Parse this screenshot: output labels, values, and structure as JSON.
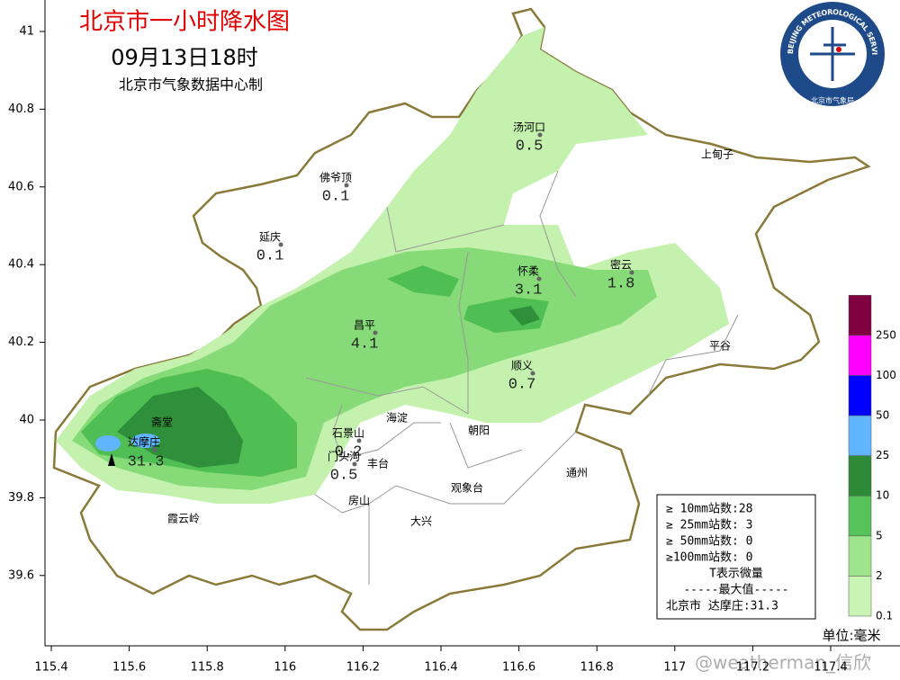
{
  "title": "北京市一小时降水图",
  "time": "09月13日18时",
  "source": "北京市气象数据中心制",
  "logo": {
    "text": "BEIJING METEOROLOGICAL SERVICE",
    "name": "北京市气象局"
  },
  "axes": {
    "lon_ticks": [
      115.4,
      115.6,
      115.8,
      116,
      116.2,
      116.4,
      116.6,
      116.8,
      117,
      117.2,
      117.4
    ],
    "lat_ticks": [
      41,
      40.8,
      40.6,
      40.4,
      40.2,
      40,
      39.8,
      39.6
    ]
  },
  "stations": [
    {
      "name": "汤河口",
      "value": 0.5
    },
    {
      "name": "佛爷顶",
      "value": 0.1
    },
    {
      "name": "延庆",
      "value": 0.1
    },
    {
      "name": "怀柔",
      "value": 3.1
    },
    {
      "name": "密云",
      "value": 1.8
    },
    {
      "name": "昌平",
      "value": 4.1
    },
    {
      "name": "顺义",
      "value": 0.7
    },
    {
      "name": "达摩庄",
      "value": 31.3
    },
    {
      "name": "石景山",
      "value": 0.2
    },
    {
      "name": "门头沟",
      "value": 0.5
    }
  ],
  "places": [
    "上甸子",
    "平谷",
    "海淀",
    "朝阳",
    "丰台",
    "通州",
    "观象台",
    "房山",
    "大兴",
    "霞云岭",
    "斋堂"
  ],
  "legend": {
    "levels": [
      0.1,
      2,
      5,
      10,
      25,
      50,
      100,
      250
    ],
    "colors": [
      "#c8f5b4",
      "#9ee48c",
      "#56c25a",
      "#2f8a37",
      "#61b5ff",
      "#0000fe",
      "#ff00ff",
      "#7f0040"
    ]
  },
  "stats": [
    "≥ 10mm站数:28",
    "≥ 25mm站数: 3",
    "≥ 50mm站数: 0",
    "≥100mm站数: 0",
    "T表示微量",
    "-----最大值-----",
    "北京市 达摩庄:31.3"
  ],
  "unit": "单位:毫米",
  "watermark": "@weatherman_信欣"
}
